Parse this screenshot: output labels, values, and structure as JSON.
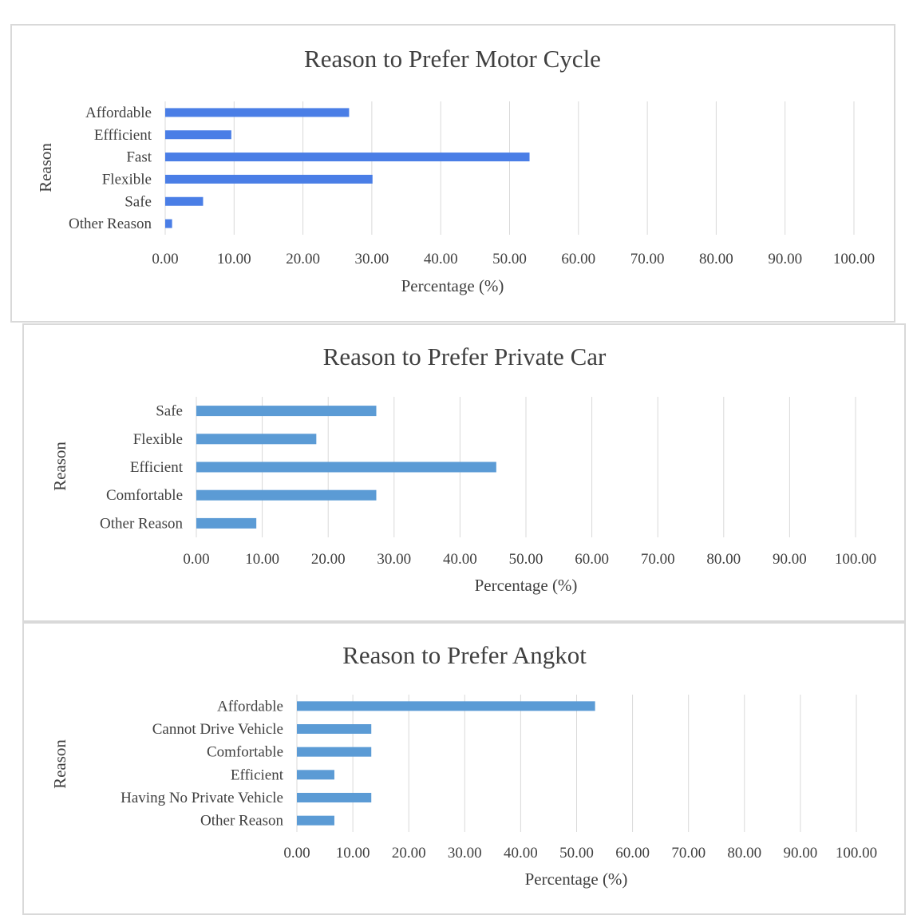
{
  "chart_data": [
    {
      "type": "bar",
      "orientation": "horizontal",
      "title": "Reason to Prefer Motor Cycle",
      "xlabel": "Percentage (%)",
      "ylabel": "Reason",
      "xlim": [
        0,
        100
      ],
      "xticks": [
        "0.00",
        "10.00",
        "20.00",
        "30.00",
        "40.00",
        "50.00",
        "60.00",
        "70.00",
        "80.00",
        "90.00",
        "100.00"
      ],
      "categories": [
        "Affordable",
        "Effficient",
        "Fast",
        "Flexible",
        "Safe",
        "Other Reason"
      ],
      "values": [
        26.7,
        9.6,
        52.9,
        30.1,
        5.5,
        1.0
      ],
      "bar_color": "#4a7ee6",
      "grid": "vertical"
    },
    {
      "type": "bar",
      "orientation": "horizontal",
      "title": "Reason to Prefer Private Car",
      "xlabel": "Percentage (%)",
      "ylabel": "Reason",
      "xlim": [
        0,
        100
      ],
      "xticks": [
        "0.00",
        "10.00",
        "20.00",
        "30.00",
        "40.00",
        "50.00",
        "60.00",
        "70.00",
        "80.00",
        "90.00",
        "100.00"
      ],
      "categories": [
        "Safe",
        "Flexible",
        "Efficient",
        "Comfortable",
        "Other Reason"
      ],
      "values": [
        27.3,
        18.2,
        45.5,
        27.3,
        9.1
      ],
      "bar_color": "#5b9bd5",
      "grid": "vertical"
    },
    {
      "type": "bar",
      "orientation": "horizontal",
      "title": "Reason to Prefer Angkot",
      "xlabel": "Percentage (%)",
      "ylabel": "Reason",
      "xlim": [
        0,
        100
      ],
      "xticks": [
        "0.00",
        "10.00",
        "20.00",
        "30.00",
        "40.00",
        "50.00",
        "60.00",
        "70.00",
        "80.00",
        "90.00",
        "100.00"
      ],
      "categories": [
        "Affordable",
        "Cannot Drive Vehicle",
        "Comfortable",
        "Efficient",
        "Having No Private Vehicle",
        "Other Reason"
      ],
      "values": [
        53.3,
        13.3,
        13.3,
        6.7,
        13.3,
        6.7
      ],
      "bar_color": "#5b9bd5",
      "grid": "vertical"
    }
  ]
}
